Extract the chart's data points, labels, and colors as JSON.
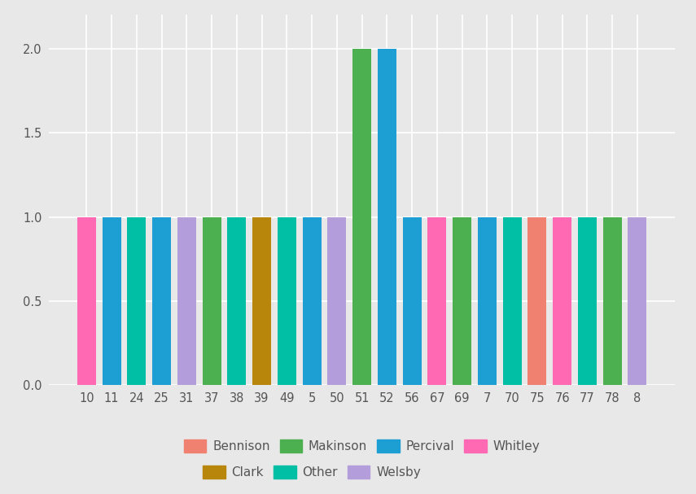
{
  "bars": [
    {
      "x": "10",
      "value": 1,
      "color": "#FF69B4",
      "category": "Whitley"
    },
    {
      "x": "11",
      "value": 1,
      "color": "#1E9FD4",
      "category": "Percival"
    },
    {
      "x": "24",
      "value": 1,
      "color": "#00BFA5",
      "category": "Other"
    },
    {
      "x": "25",
      "value": 1,
      "color": "#1E9FD4",
      "category": "Percival"
    },
    {
      "x": "31",
      "value": 1,
      "color": "#B39DDB",
      "category": "Welsby"
    },
    {
      "x": "37",
      "value": 1,
      "color": "#4CAF50",
      "category": "Makinson"
    },
    {
      "x": "38",
      "value": 1,
      "color": "#00BFA5",
      "category": "Other"
    },
    {
      "x": "39",
      "value": 1,
      "color": "#B8860B",
      "category": "Clark"
    },
    {
      "x": "49",
      "value": 1,
      "color": "#00BFA5",
      "category": "Other"
    },
    {
      "x": "5",
      "value": 1,
      "color": "#1E9FD4",
      "category": "Percival"
    },
    {
      "x": "50",
      "value": 1,
      "color": "#B39DDB",
      "category": "Welsby"
    },
    {
      "x": "51",
      "value": 2,
      "color": "#4CAF50",
      "category": "Makinson"
    },
    {
      "x": "52",
      "value": 2,
      "color": "#1E9FD4",
      "category": "Percival"
    },
    {
      "x": "56",
      "value": 1,
      "color": "#1E9FD4",
      "category": "Percival"
    },
    {
      "x": "67",
      "value": 1,
      "color": "#FF69B4",
      "category": "Whitley"
    },
    {
      "x": "69",
      "value": 1,
      "color": "#4CAF50",
      "category": "Makinson"
    },
    {
      "x": "7",
      "value": 1,
      "color": "#1E9FD4",
      "category": "Percival"
    },
    {
      "x": "70",
      "value": 1,
      "color": "#00BFA5",
      "category": "Other"
    },
    {
      "x": "75",
      "value": 1,
      "color": "#F08070",
      "category": "Bennison"
    },
    {
      "x": "76",
      "value": 1,
      "color": "#FF69B4",
      "category": "Whitley"
    },
    {
      "x": "77",
      "value": 1,
      "color": "#00BFA5",
      "category": "Other"
    },
    {
      "x": "78",
      "value": 1,
      "color": "#4CAF50",
      "category": "Makinson"
    },
    {
      "x": "8",
      "value": 1,
      "color": "#B39DDB",
      "category": "Welsby"
    }
  ],
  "legend_row1": [
    {
      "label": "Bennison",
      "color": "#F08070"
    },
    {
      "label": "Makinson",
      "color": "#4CAF50"
    },
    {
      "label": "Percival",
      "color": "#1E9FD4"
    },
    {
      "label": "Whitley",
      "color": "#FF69B4"
    }
  ],
  "legend_row2": [
    {
      "label": "Clark",
      "color": "#B8860B"
    },
    {
      "label": "Other",
      "color": "#00BFA5"
    },
    {
      "label": "Welsby",
      "color": "#B39DDB"
    }
  ],
  "ylim": [
    0,
    2.2
  ],
  "yticks": [
    0.0,
    0.5,
    1.0,
    1.5,
    2.0
  ],
  "background_color": "#E8E8E8",
  "grid_color": "#FFFFFF",
  "bar_width": 0.75,
  "figsize": [
    8.55,
    6.07
  ],
  "dpi": 100
}
